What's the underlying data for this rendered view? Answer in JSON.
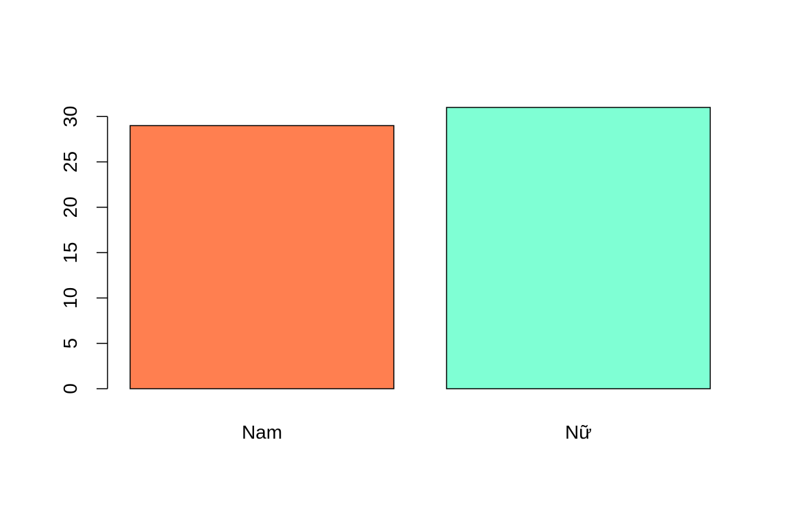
{
  "chart_data": {
    "type": "bar",
    "title": "",
    "xlabel": "",
    "ylabel": "",
    "categories": [
      "Nam",
      "Nữ"
    ],
    "values": [
      29,
      31
    ],
    "colors": [
      "#FF7F50",
      "#7FFFD4"
    ],
    "ylim": [
      0,
      31
    ],
    "yticks": [
      0,
      5,
      10,
      15,
      20,
      25,
      30
    ],
    "ytick_labels": [
      "0",
      "5",
      "10",
      "15",
      "20",
      "25",
      "30"
    ],
    "grid": false,
    "legend": "none"
  }
}
